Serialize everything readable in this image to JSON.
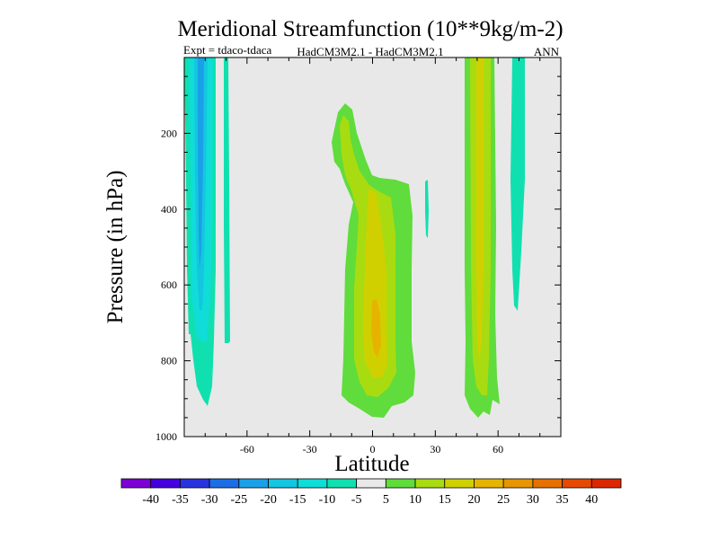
{
  "chart_data": {
    "type": "heatmap",
    "title": "Meridional Streamfunction (10**9kg/m-2)",
    "subtitle_left": "Expt = tdaco-tdaca",
    "subtitle_center": "HadCM3M2.1 - HadCM3M2.1",
    "subtitle_right": "ANN",
    "xlabel": "Latitude",
    "ylabel": "Pressure (in hPa)",
    "xlim": [
      -90,
      90
    ],
    "ylim": [
      1000,
      0
    ],
    "x_ticks": [
      -60,
      -30,
      0,
      30,
      60
    ],
    "x_tick_labels": [
      "-60",
      "-30",
      "0",
      "30",
      "60"
    ],
    "y_ticks": [
      200,
      400,
      600,
      800,
      1000
    ],
    "y_tick_labels": [
      "200",
      "400",
      "600",
      "800",
      "1000"
    ],
    "colorbar": {
      "ticks": [
        "-40",
        "-35",
        "-30",
        "-25",
        "-20",
        "-15",
        "-10",
        "-5",
        "5",
        "10",
        "15",
        "20",
        "25",
        "30",
        "35",
        "40"
      ],
      "colors": [
        "#7d00d6",
        "#4500e0",
        "#2833e0",
        "#1b6ee6",
        "#1aa0e8",
        "#14c6e0",
        "#10dcd8",
        "#10e0b0",
        "#e8e8e8",
        "#60dc3c",
        "#a8dc10",
        "#d0d000",
        "#e6b400",
        "#e69600",
        "#e67000",
        "#e64a00",
        "#dc2800"
      ]
    },
    "background_level": "-5 to 5",
    "features": [
      {
        "name": "southern-negative-cell-outer",
        "level": "-10 to -5",
        "lat_range": [
          -88,
          -77
        ],
        "pressure_range": [
          0,
          930
        ]
      },
      {
        "name": "southern-negative-cell-core",
        "level": "-15 to -10",
        "lat_range": [
          -84,
          -80
        ],
        "pressure_range": [
          0,
          760
        ]
      },
      {
        "name": "southern-narrow-negative",
        "level": "-10 to -5",
        "lat_range": [
          -68,
          -66
        ],
        "pressure_range": [
          0,
          750
        ]
      },
      {
        "name": "equatorial-positive-cell-outer",
        "level": "5 to 10",
        "lat_range": [
          -17,
          19
        ],
        "pressure_range": [
          160,
          950
        ]
      },
      {
        "name": "equatorial-positive-cell-mid",
        "level": "10 to 15",
        "lat_range": [
          -10,
          11
        ],
        "pressure_range": [
          240,
          920
        ]
      },
      {
        "name": "equatorial-positive-cell-core",
        "level": "15 to 20",
        "lat_range": [
          -3,
          5
        ],
        "pressure_range": [
          500,
          830
        ]
      },
      {
        "name": "equatorial-positive-cell-peak",
        "level": "20 to 25",
        "lat_range": [
          -0.5,
          2
        ],
        "pressure_range": [
          680,
          800
        ]
      },
      {
        "name": "small-isolated-negative",
        "level": "-10 to -5",
        "lat_range": [
          25,
          27
        ],
        "pressure_range": [
          330,
          470
        ]
      },
      {
        "name": "northern-positive-cell-outer",
        "level": "5 to 10",
        "lat_range": [
          44,
          58
        ],
        "pressure_range": [
          0,
          950
        ]
      },
      {
        "name": "northern-positive-cell-mid",
        "level": "10 to 15",
        "lat_range": [
          47,
          55
        ],
        "pressure_range": [
          0,
          900
        ]
      },
      {
        "name": "northern-positive-cell-core",
        "level": "15 to 20",
        "lat_range": [
          50,
          52
        ],
        "pressure_range": [
          0,
          800
        ]
      },
      {
        "name": "northern-negative-column",
        "level": "-10 to -5",
        "lat_range": [
          66,
          73
        ],
        "pressure_range": [
          0,
          670
        ]
      }
    ]
  }
}
